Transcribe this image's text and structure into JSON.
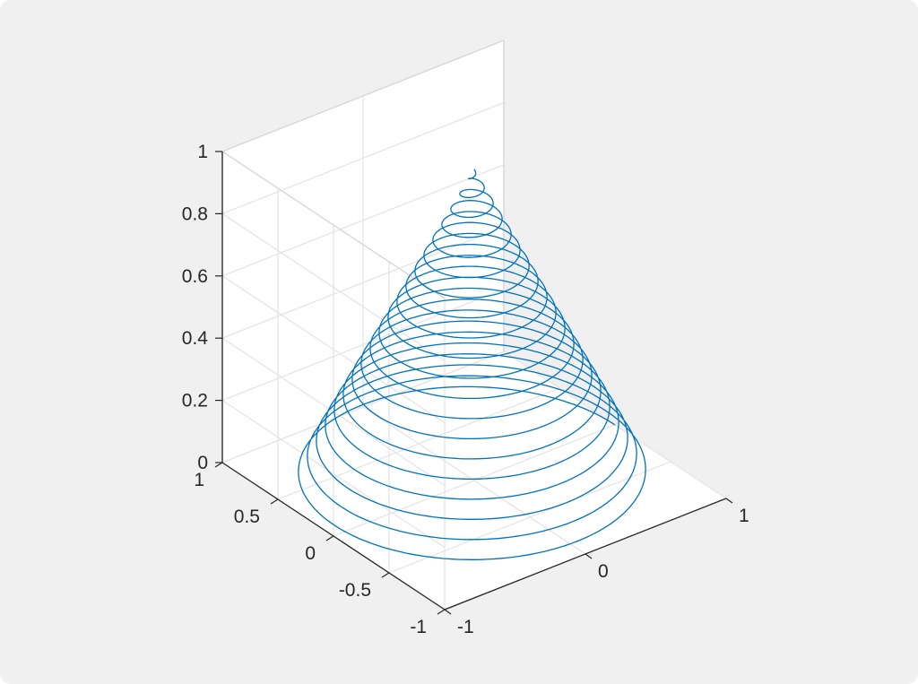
{
  "chart_data": {
    "type": "line",
    "dimensions": "3d",
    "title": "",
    "xlabel": "",
    "ylabel": "",
    "zlabel": "",
    "xlim": [
      -1,
      1
    ],
    "ylim": [
      -1,
      1
    ],
    "zlim": [
      0,
      1
    ],
    "grid": true,
    "box": "on",
    "view_azimuth_deg": -37.5,
    "view_elevation_deg": 30,
    "x_ticks": [
      "-1",
      "0",
      "1"
    ],
    "y_ticks": [
      "-1",
      "-0.5",
      "0",
      "0.5",
      "1"
    ],
    "z_ticks": [
      "0",
      "0.2",
      "0.4",
      "0.6",
      "0.8",
      "1"
    ],
    "series": [
      {
        "color": "#0072bd",
        "equation": "x = (1 - t) * cos(2*pi*20*t), y = (1 - t) * sin(2*pi*20*t), z = t",
        "parameter_range": [
          0,
          1
        ],
        "turns": 20
      }
    ]
  },
  "colors": {
    "background": "#f0f0f0",
    "axes_background": "#ffffff",
    "grid": "#e3e3e3",
    "axis_line": "#262626",
    "line": "#0072bd"
  }
}
